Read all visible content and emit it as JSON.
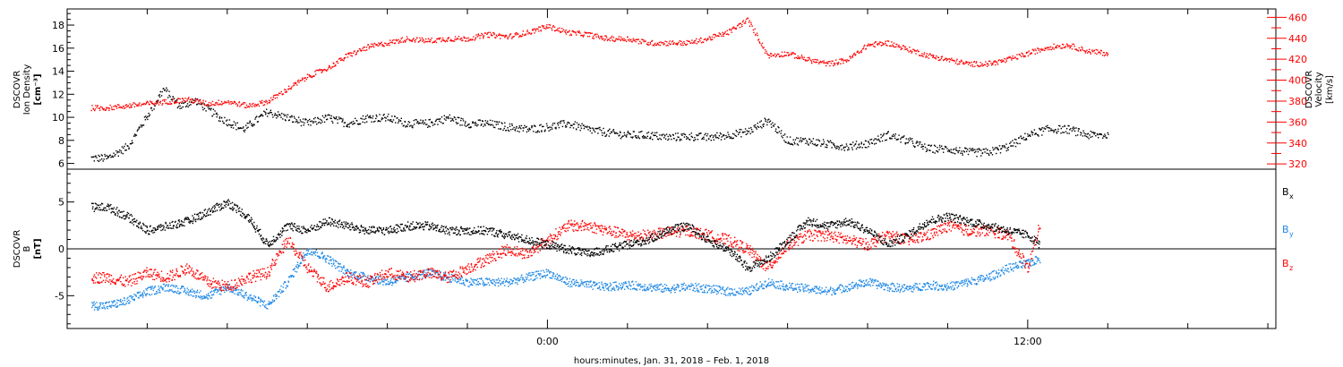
{
  "chart_data": [
    {
      "type": "scatter",
      "panel": "top",
      "left_axis": {
        "label_lines": [
          "DSCOVR",
          "Ion Density",
          "[cm⁻³]"
        ],
        "ticks": [
          "6",
          "8",
          "10",
          "12",
          "14",
          "16",
          "18"
        ],
        "ylim": [
          5.5,
          19.4
        ]
      },
      "right_axis": {
        "label_lines": [
          "DSCOVR",
          "Velocity",
          "[km/s]"
        ],
        "ticks": [
          "320",
          "340",
          "360",
          "380",
          "400",
          "420",
          "440",
          "460"
        ],
        "ylim": [
          315,
          468
        ],
        "color": "#ff0000"
      },
      "series": [
        {
          "axis": "left",
          "color": "#000000",
          "x": [
            -11.4,
            -11.0,
            -10.5,
            -10.0,
            -9.6,
            -9.2,
            -8.8,
            -8.2,
            -7.6,
            -7.0,
            -6.5,
            -6.0,
            -5.5,
            -5.0,
            -4.5,
            -4.0,
            -3.5,
            -3.0,
            -2.5,
            -2.0,
            -1.5,
            -1.0,
            -0.5,
            0.0,
            0.5,
            1.0,
            1.5,
            2.0,
            2.5,
            3.0,
            3.5,
            4.0,
            4.5,
            5.0,
            5.5,
            6.0,
            6.5,
            7.0,
            7.5,
            8.0,
            8.5,
            9.0,
            9.5,
            10.0,
            10.5,
            11.0,
            11.5,
            12.0,
            12.5,
            13.0,
            13.5,
            14.0
          ],
          "y": [
            6.5,
            6.5,
            7.5,
            10.2,
            12.5,
            11.0,
            11.5,
            10.0,
            9.0,
            10.5,
            10.0,
            9.5,
            10.0,
            9.5,
            10.0,
            10.0,
            9.5,
            9.5,
            10.0,
            9.5,
            9.5,
            9.2,
            9.0,
            9.2,
            9.5,
            9.0,
            8.7,
            8.5,
            8.5,
            8.3,
            8.4,
            8.3,
            8.5,
            8.8,
            9.8,
            8.0,
            8.0,
            7.7,
            7.5,
            7.8,
            8.5,
            8.0,
            7.3,
            7.3,
            7.0,
            7.0,
            7.5,
            8.5,
            9.0,
            9.0,
            8.5,
            8.5
          ]
        },
        {
          "axis": "right",
          "color": "#ff0000",
          "x": [
            -11.4,
            -11.0,
            -10.5,
            -10.0,
            -9.5,
            -9.0,
            -8.5,
            -8.0,
            -7.5,
            -7.0,
            -6.5,
            -6.0,
            -5.5,
            -5.0,
            -4.5,
            -4.0,
            -3.5,
            -3.0,
            -2.5,
            -2.0,
            -1.5,
            -1.0,
            -0.5,
            0.0,
            0.5,
            1.0,
            1.5,
            2.0,
            2.5,
            3.0,
            3.5,
            4.0,
            4.5,
            5.0,
            5.5,
            6.0,
            6.5,
            7.0,
            7.5,
            8.0,
            8.5,
            9.0,
            9.5,
            10.0,
            10.5,
            11.0,
            11.5,
            12.0,
            12.5,
            13.0,
            13.5,
            14.0
          ],
          "y": [
            374,
            374,
            376,
            378,
            380,
            382,
            378,
            380,
            376,
            380,
            392,
            404,
            412,
            424,
            432,
            436,
            440,
            438,
            440,
            440,
            444,
            442,
            446,
            452,
            446,
            444,
            440,
            440,
            436,
            436,
            436,
            440,
            446,
            458,
            424,
            426,
            420,
            416,
            420,
            434,
            436,
            430,
            424,
            420,
            416,
            416,
            420,
            426,
            432,
            434,
            428,
            426
          ]
        }
      ]
    },
    {
      "type": "scatter",
      "panel": "bottom",
      "left_axis": {
        "label_lines": [
          "DSCOVR",
          "B",
          "[nT]"
        ],
        "ticks": [
          "-5",
          "0",
          "5"
        ],
        "ylim": [
          -8.5,
          8.5
        ]
      },
      "zero_line": true,
      "series": [
        {
          "name": "B",
          "subscript": "x",
          "color": "#000000",
          "x": [
            -11.4,
            -11.0,
            -10.5,
            -10.0,
            -9.5,
            -9.0,
            -8.5,
            -8.0,
            -7.5,
            -7.0,
            -6.5,
            -6.0,
            -5.5,
            -5.0,
            -4.5,
            -4.0,
            -3.5,
            -3.0,
            -2.5,
            -2.0,
            -1.5,
            -1.0,
            -0.5,
            0.0,
            0.5,
            1.0,
            1.5,
            2.0,
            2.5,
            3.0,
            3.5,
            4.0,
            4.5,
            5.0,
            5.5,
            6.0,
            6.5,
            7.0,
            7.5,
            8.0,
            8.5,
            9.0,
            9.5,
            10.0,
            10.5,
            11.0,
            11.5,
            12.0,
            12.3
          ],
          "y": [
            4.5,
            4.5,
            3.5,
            2.0,
            2.5,
            3.0,
            4.0,
            5.0,
            3.5,
            0.5,
            2.5,
            2.0,
            3.0,
            2.5,
            2.0,
            2.0,
            2.5,
            2.5,
            2.0,
            2.0,
            2.0,
            1.5,
            1.0,
            0.5,
            0.0,
            -0.5,
            0.0,
            0.5,
            1.0,
            2.0,
            2.5,
            1.0,
            0.0,
            -2.0,
            -1.0,
            1.0,
            3.0,
            2.5,
            3.0,
            2.0,
            0.5,
            1.5,
            3.0,
            3.5,
            3.0,
            2.5,
            2.0,
            1.5,
            0.5
          ]
        },
        {
          "name": "B",
          "subscript": "y",
          "color": "#1e88e5",
          "x": [
            -11.4,
            -11.0,
            -10.5,
            -10.0,
            -9.5,
            -9.0,
            -8.5,
            -8.0,
            -7.5,
            -7.0,
            -6.5,
            -6.0,
            -5.5,
            -5.0,
            -4.5,
            -4.0,
            -3.5,
            -3.0,
            -2.5,
            -2.0,
            -1.5,
            -1.0,
            -0.5,
            0.0,
            0.5,
            1.0,
            1.5,
            2.0,
            2.5,
            3.0,
            3.5,
            4.0,
            4.5,
            5.0,
            5.5,
            6.0,
            6.5,
            7.0,
            7.5,
            8.0,
            8.5,
            9.0,
            9.5,
            10.0,
            10.5,
            11.0,
            11.5,
            12.0,
            12.3
          ],
          "y": [
            -6.0,
            -6.0,
            -5.5,
            -4.5,
            -4.0,
            -4.5,
            -5.0,
            -4.0,
            -5.0,
            -6.0,
            -3.5,
            0.0,
            -1.0,
            -2.5,
            -3.0,
            -3.5,
            -3.0,
            -2.5,
            -3.0,
            -3.5,
            -3.5,
            -3.5,
            -3.0,
            -2.5,
            -3.5,
            -3.8,
            -4.0,
            -3.8,
            -4.0,
            -4.2,
            -4.0,
            -4.2,
            -4.5,
            -4.5,
            -3.5,
            -4.0,
            -4.2,
            -4.5,
            -4.0,
            -3.5,
            -4.0,
            -4.2,
            -3.8,
            -4.0,
            -3.5,
            -3.0,
            -2.0,
            -1.5,
            -1.0
          ]
        },
        {
          "name": "B",
          "subscript": "z",
          "color": "#ff0000",
          "x": [
            -11.4,
            -11.0,
            -10.5,
            -10.0,
            -9.5,
            -9.0,
            -8.5,
            -8.0,
            -7.5,
            -7.0,
            -6.5,
            -6.0,
            -5.5,
            -5.0,
            -4.5,
            -4.0,
            -3.5,
            -3.0,
            -2.5,
            -2.0,
            -1.5,
            -1.0,
            -0.5,
            0.0,
            0.5,
            1.0,
            1.5,
            2.0,
            2.5,
            3.0,
            3.5,
            4.0,
            4.5,
            5.0,
            5.5,
            6.0,
            6.5,
            7.0,
            7.5,
            8.0,
            8.5,
            9.0,
            9.5,
            10.0,
            10.5,
            11.0,
            11.5,
            12.0,
            12.3
          ],
          "y": [
            -3.0,
            -3.0,
            -3.5,
            -2.5,
            -3.0,
            -2.0,
            -3.5,
            -4.0,
            -3.0,
            -2.5,
            1.0,
            -2.0,
            -4.0,
            -3.0,
            -3.5,
            -2.5,
            -3.0,
            -2.5,
            -3.0,
            -2.0,
            -1.0,
            0.0,
            -0.5,
            1.0,
            2.5,
            2.5,
            2.0,
            1.5,
            1.5,
            1.8,
            2.0,
            1.5,
            1.0,
            0.0,
            -2.0,
            0.5,
            1.5,
            1.5,
            1.0,
            0.5,
            1.5,
            1.0,
            1.5,
            2.5,
            2.0,
            2.0,
            1.5,
            -2.0,
            3.0
          ]
        }
      ]
    }
  ],
  "shared_x": {
    "unit": "hours relative to Feb. 1, 2018 00:00",
    "xlim": [
      -12.0,
      18.2
    ],
    "major_ticks": [
      {
        "x": 0,
        "label": "0:00"
      },
      {
        "x": 12,
        "label": "12:00"
      }
    ],
    "minor_tick_step": 2,
    "xlabel": "hours:minutes, Jan. 31, 2018 – Feb.  1, 2018"
  }
}
